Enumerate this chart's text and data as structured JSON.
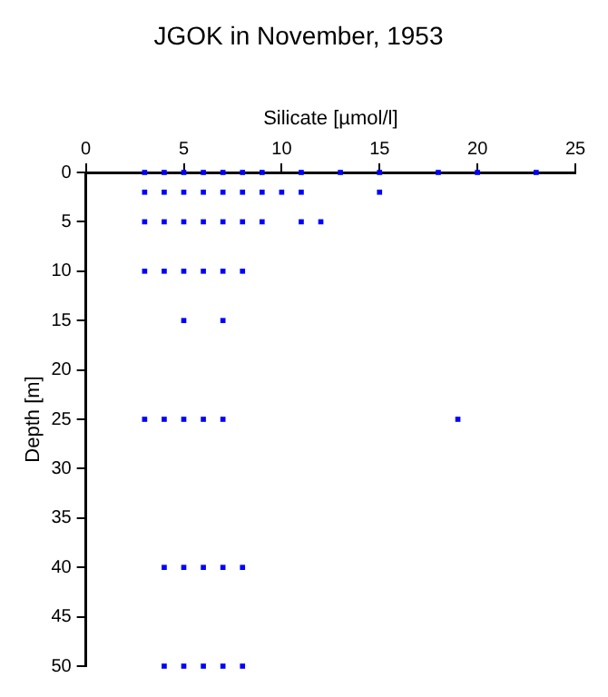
{
  "chart_data": {
    "type": "scatter",
    "title": "JGOK in November, 1953",
    "xlabel": "Silicate [µmol/l]",
    "ylabel": "Depth [m]",
    "series": [
      {
        "color": "#0000ff",
        "x": [
          3,
          4,
          5,
          6,
          7,
          8,
          9,
          11,
          13,
          15,
          18,
          20,
          23,
          3,
          4,
          5,
          6,
          7,
          8,
          9,
          10,
          11,
          15,
          3,
          4,
          5,
          6,
          7,
          8,
          9,
          11,
          12,
          3,
          4,
          5,
          6,
          7,
          8,
          5,
          7,
          3,
          4,
          5,
          6,
          7,
          19,
          4,
          5,
          6,
          7,
          8,
          4,
          5,
          6,
          7,
          8
        ],
        "values": [
          0,
          0,
          0,
          0,
          0,
          0,
          0,
          0,
          0,
          0,
          0,
          0,
          0,
          2,
          2,
          2,
          2,
          2,
          2,
          2,
          2,
          2,
          2,
          5,
          5,
          5,
          5,
          5,
          5,
          5,
          5,
          5,
          10,
          10,
          10,
          10,
          10,
          10,
          15,
          15,
          25,
          25,
          25,
          25,
          25,
          25,
          40,
          40,
          40,
          40,
          40,
          50,
          50,
          50,
          50,
          50
        ]
      }
    ],
    "xlim": [
      0,
      25
    ],
    "xticks": [
      0,
      5,
      10,
      15,
      20,
      25
    ],
    "ylim": [
      50,
      0
    ],
    "yticks": [
      0,
      5,
      10,
      15,
      20,
      25,
      30,
      35,
      40,
      45,
      50
    ],
    "marker": "square",
    "grid": false,
    "legend": false
  }
}
